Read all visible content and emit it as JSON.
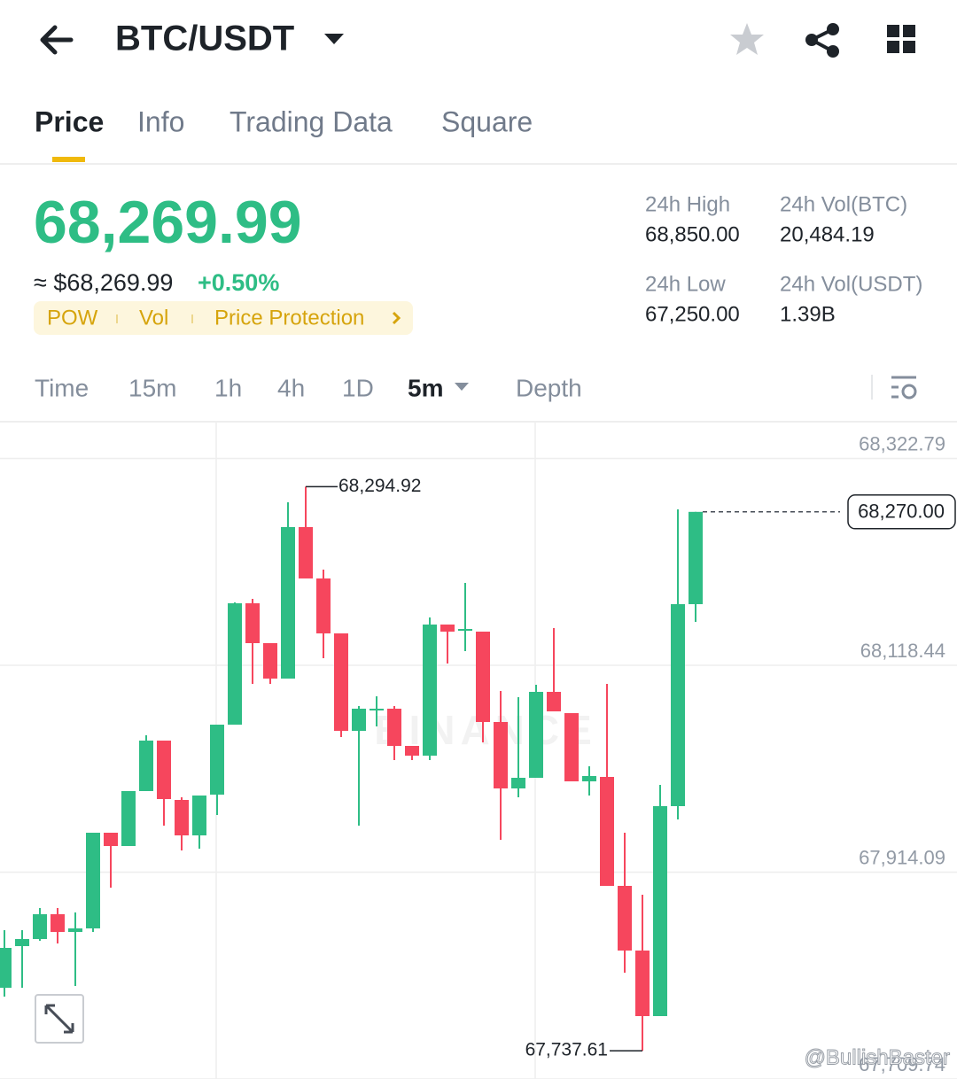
{
  "header": {
    "title": "BTC/USDT"
  },
  "tabs": {
    "items": [
      "Price",
      "Info",
      "Trading Data",
      "Square"
    ],
    "active": 0
  },
  "ticker": {
    "last": "68,269.99",
    "fiat": "≈ $68,269.99",
    "change": "+0.50%"
  },
  "tags": [
    "POW",
    "Vol",
    "Price Protection"
  ],
  "stats": [
    {
      "label": "24h High",
      "value": "68,850.00"
    },
    {
      "label": "24h Vol(BTC)",
      "value": "20,484.19"
    },
    {
      "label": "24h Low",
      "value": "67,250.00"
    },
    {
      "label": "24h Vol(USDT)",
      "value": "1.39B"
    }
  ],
  "intervals": {
    "items": [
      "Time",
      "15m",
      "1h",
      "4h",
      "1D",
      "5m",
      "Depth"
    ],
    "active": 5
  },
  "watermark": "@BullishBaster",
  "chart_data": {
    "type": "candlestick",
    "watermark": "BINANCE",
    "up_color": "#2ebd85",
    "down_color": "#f6465d",
    "ylim": [
      67709.74,
      68357.35
    ],
    "yticks": [
      {
        "value": 68322.79,
        "label": "68,322.79"
      },
      {
        "value": 68118.44,
        "label": "68,118.44"
      },
      {
        "value": 67914.09,
        "label": "67,914.09"
      },
      {
        "value": 67709.74,
        "label": "67,709.74"
      }
    ],
    "grid": true,
    "open": [
      67799.88,
      67841.01,
      67848.02,
      67872.52,
      67855.02,
      67858.52,
      67953.03,
      67939.91,
      67994.17,
      68044.05,
      67985.42,
      67950.41,
      67990.67,
      68059.8,
      68179.7,
      68140.32,
      68105.31,
      68254.96,
      68204.21,
      68149.95,
      68053.68,
      68073.81,
      68075.56,
      68038.8,
      68029.17,
      68158.7,
      68152.57,
      68151.7,
      68062.43,
      67996.79,
      68007.29,
      68092.19,
      68071.18,
      68003.79,
      68008.17,
      67900.53,
      67836.64,
      67771.88,
      67979.29,
      68178.83
    ],
    "high": [
      67856.77,
      67856.77,
      67878.65,
      67878.65,
      67874.27,
      67953.03,
      67953.03,
      67994.17,
      68049.3,
      68044.05,
      67988.04,
      67989.79,
      68059.8,
      68180.58,
      68184.08,
      68140.32,
      68279.47,
      68294.92,
      68212.96,
      68149.95,
      68078.18,
      68087.81,
      68078.18,
      68038.8,
      68165.7,
      68158.7,
      68199.83,
      68151.7,
      68093.06,
      68086.93,
      68099.19,
      68155.2,
      68071.18,
      68018.67,
      68100.06,
      67953.03,
      67891.77,
      68000.29,
      68272.47,
      68270.0
    ],
    "low": [
      67791.13,
      67799.88,
      67846.27,
      67843.64,
      67801.63,
      67855.02,
      67898.77,
      67939.91,
      67994.17,
      67960.04,
      67935.53,
      67937.28,
      67970.54,
      68059.8,
      68100.06,
      68100.06,
      68105.31,
      68204.21,
      68125.44,
      68047.55,
      67960.04,
      68058.05,
      68024.8,
      68024.8,
      68024.8,
      68120.19,
      68132.44,
      68042.3,
      67946.03,
      67988.04,
      68007.29,
      68072.93,
      68003.79,
      67989.79,
      67900.53,
      67814.76,
      67737.61,
      67771.88,
      67966.16,
      68161.32
    ],
    "close": [
      67839.26,
      67848.02,
      67872.52,
      67855.02,
      67858.52,
      67953.03,
      67939.91,
      67994.17,
      68044.05,
      67986.29,
      67950.41,
      67989.79,
      68059.8,
      68179.7,
      68140.32,
      68105.31,
      68254.96,
      68204.21,
      68149.95,
      68053.68,
      68075.56,
      68075.56,
      68038.8,
      68029.17,
      68158.7,
      68151.7,
      68154.32,
      68062.43,
      67996.79,
      68007.29,
      68092.19,
      68072.93,
      68003.79,
      68009.04,
      67900.53,
      67836.64,
      67771.88,
      67979.29,
      68178.83,
      68270.0
    ],
    "high_marker": {
      "value": 68294.92,
      "label": "68,294.92"
    },
    "low_marker": {
      "value": 67737.61,
      "label": "67,737.61"
    },
    "last_price": {
      "value": 68270.0,
      "label": "68,270.00"
    }
  }
}
